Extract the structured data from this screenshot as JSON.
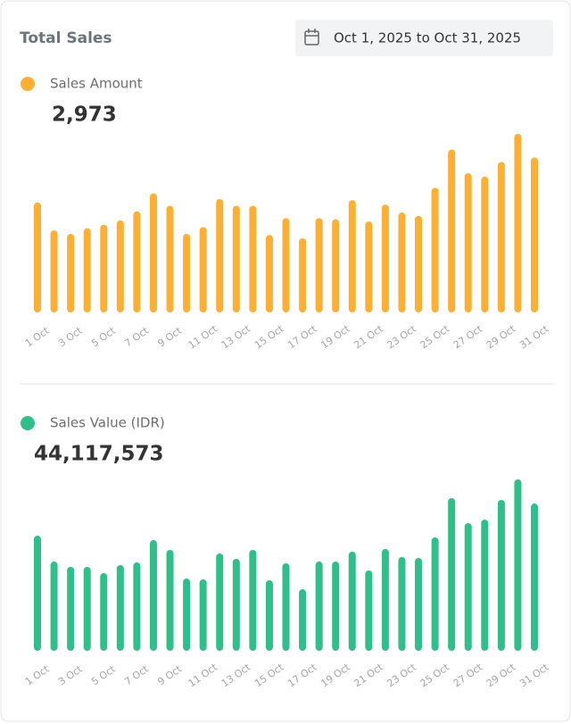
{
  "header": {
    "title": "Total Sales",
    "date_range": "Oct 1, 2025 to Oct 31, 2025"
  },
  "chart_data": [
    {
      "type": "bar",
      "series": [
        {
          "name": "Sales Amount",
          "color": "#fbb034",
          "values": [
            98,
            73,
            70,
            75,
            78,
            82,
            90,
            106,
            95,
            70,
            76,
            101,
            95,
            95,
            69,
            84,
            66,
            84,
            83,
            100,
            81,
            96,
            89,
            86,
            111,
            145,
            124,
            121,
            134,
            159,
            138
          ]
        }
      ],
      "total": {
        "value": 2973,
        "label": "2,973"
      },
      "categories": [
        "1 Oct",
        null,
        "3 Oct",
        null,
        "5 Oct",
        null,
        "7 Oct",
        null,
        "9 Oct",
        null,
        "11 Oct",
        null,
        "13 Oct",
        null,
        "15 Oct",
        null,
        "17 Oct",
        null,
        "19 Oct",
        null,
        "21 Oct",
        null,
        "23 Oct",
        null,
        "25 Oct",
        null,
        "27 Oct",
        null,
        "29 Oct",
        null,
        "31 Oct"
      ]
    },
    {
      "type": "bar",
      "series": [
        {
          "name": "Sales Value (IDR)",
          "color": "#2fbf8a",
          "values": [
            1623000,
            1258000,
            1183000,
            1183000,
            1095000,
            1208000,
            1246000,
            1560000,
            1422000,
            1019000,
            1007000,
            1372000,
            1296000,
            1422000,
            994000,
            1233000,
            868000,
            1258000,
            1258000,
            1397000,
            1132000,
            1434000,
            1321000,
            1309000,
            1598000,
            2152000,
            1799000,
            1850000,
            2127000,
            2416000,
            2076000
          ]
        }
      ],
      "total": {
        "value": 44117573,
        "label": "44,117,573"
      },
      "categories": [
        "1 Oct",
        null,
        "3 Oct",
        null,
        "5 Oct",
        null,
        "7 Oct",
        null,
        "9 Oct",
        null,
        "11 Oct",
        null,
        "13 Oct",
        null,
        "15 Oct",
        null,
        "17 Oct",
        null,
        "19 Oct",
        null,
        "21 Oct",
        null,
        "23 Oct",
        null,
        "25 Oct",
        null,
        "27 Oct",
        null,
        "29 Oct",
        null,
        "31 Oct"
      ]
    }
  ]
}
